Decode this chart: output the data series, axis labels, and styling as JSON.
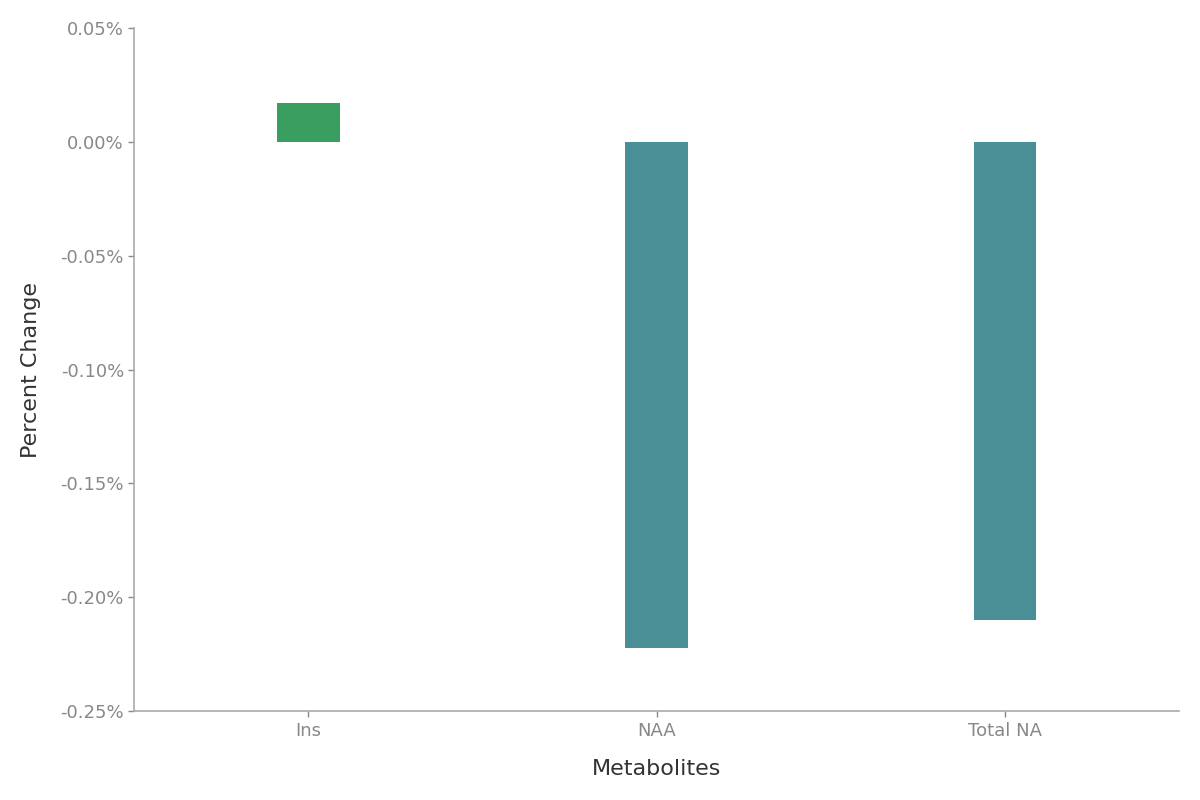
{
  "categories": [
    "Ins",
    "NAA",
    "Total NA"
  ],
  "values": [
    0.00017,
    -0.00222,
    -0.0021
  ],
  "bar_colors": [
    "#3a9e60",
    "#4a8f96",
    "#4a8f96"
  ],
  "ylabel": "Percent Change",
  "xlabel": "Metabolites",
  "ylim": [
    -0.0025,
    0.0005
  ],
  "yticks": [
    0.0005,
    0.0,
    -0.0005,
    -0.001,
    -0.0015,
    -0.002,
    -0.0025
  ],
  "ytick_labels": [
    "0.05%",
    "0.00%",
    "-0.05%",
    "-0.10%",
    "-0.15%",
    "-0.20%",
    "-0.25%"
  ],
  "background_color": "#ffffff",
  "spine_color": "#aaaaaa",
  "bar_width": 0.18,
  "label_fontsize": 16,
  "tick_fontsize": 13,
  "tick_color": "#888888",
  "label_color": "#333333"
}
